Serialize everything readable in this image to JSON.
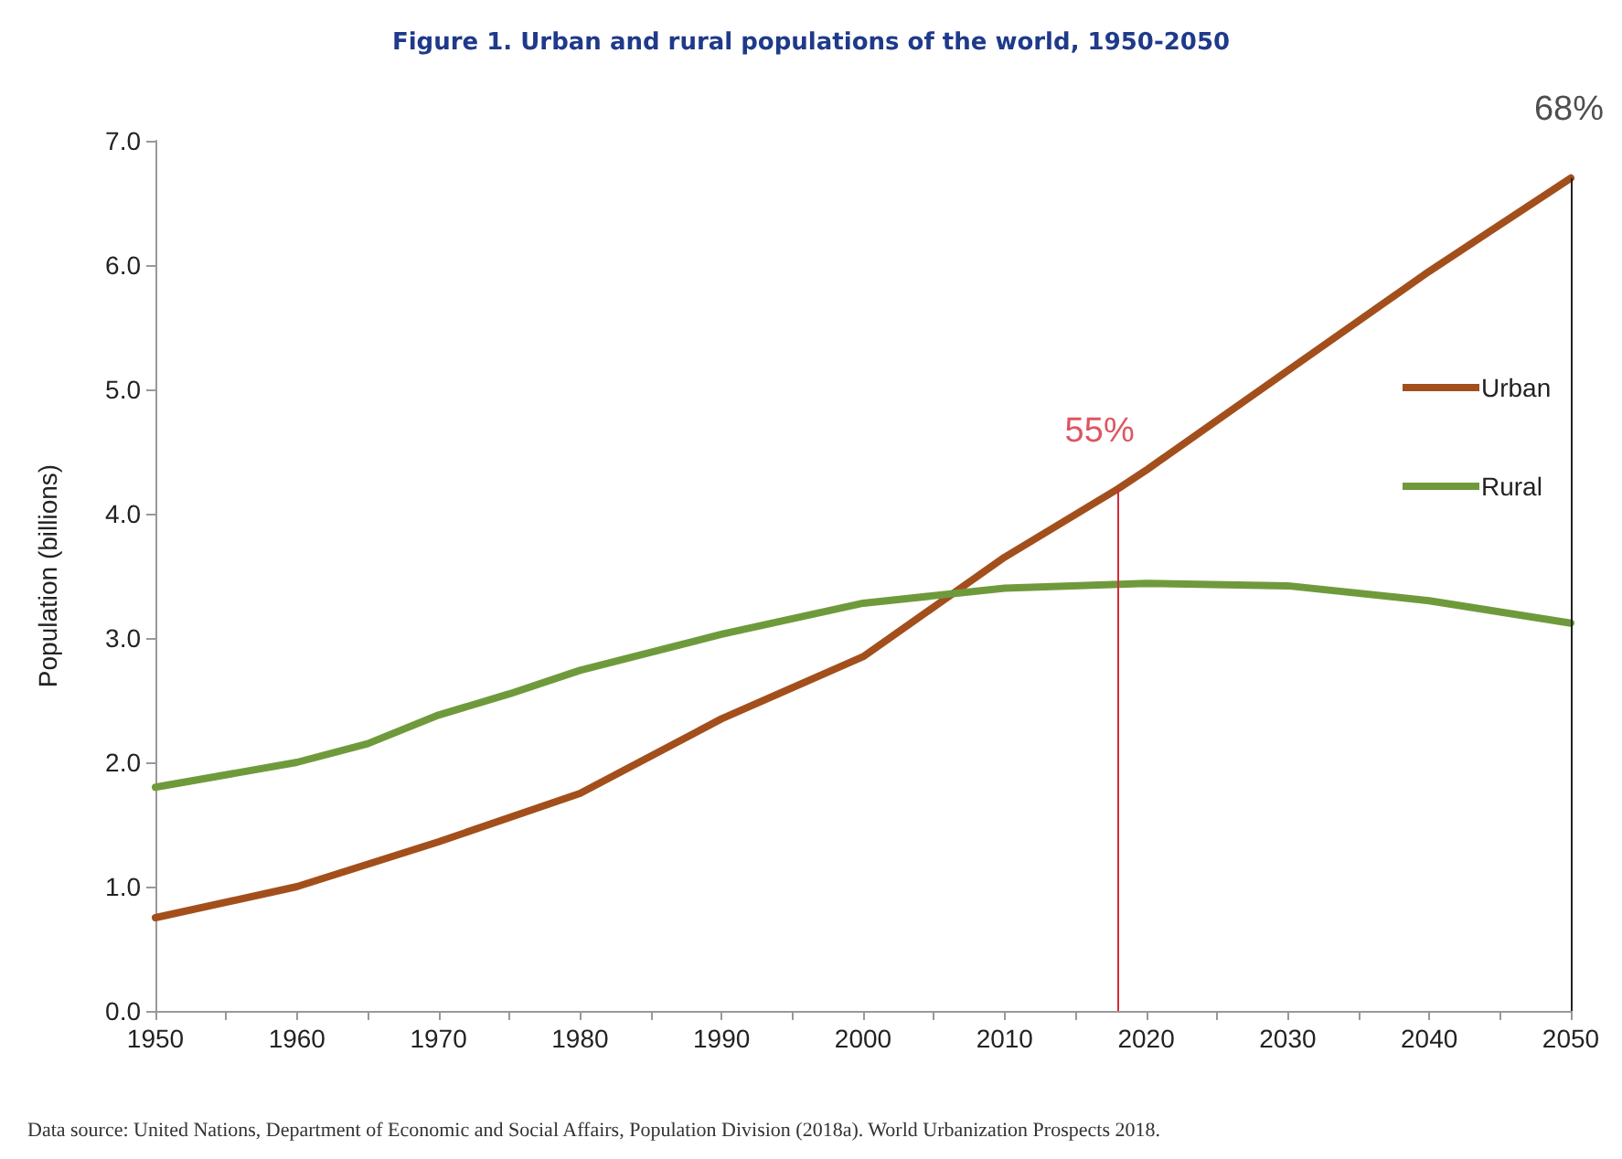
{
  "chart_data": {
    "type": "line",
    "title": "Figure 1. Urban and rural populations of the world, 1950-2050",
    "ylabel": "Population (billions)",
    "annotations": [
      "Data source: United Nations, Department of Economic and Social Affairs, Population Division (2018a). World Urbanization Prospects 2018.",
      {
        "text": "55%",
        "x": 2018,
        "y": 4.2
      },
      {
        "text": "68%",
        "x": 2050,
        "y": 6.7
      }
    ],
    "series": [
      {
        "name": "Urban",
        "color": "#a34f1c",
        "x": [
          1950,
          1960,
          1970,
          1980,
          1990,
          2000,
          2010,
          2018,
          2020,
          2030,
          2040,
          2050
        ],
        "values": [
          0.75,
          1.0,
          1.36,
          1.75,
          2.35,
          2.85,
          3.65,
          4.2,
          4.35,
          5.15,
          5.95,
          6.7
        ]
      },
      {
        "name": "Rural",
        "color": "#6f9a3c",
        "x": [
          1950,
          1960,
          1965,
          1970,
          1975,
          1980,
          1990,
          2000,
          2010,
          2020,
          2030,
          2040,
          2050
        ],
        "values": [
          1.8,
          2.0,
          2.15,
          2.38,
          2.55,
          2.74,
          3.03,
          3.28,
          3.4,
          3.44,
          3.42,
          3.3,
          3.12
        ]
      }
    ],
    "xlim": [
      1950,
      2050
    ],
    "xticks": [
      1950,
      {
        "value": 1955,
        "label": null
      },
      1960,
      {
        "value": 1965,
        "label": null
      },
      1970,
      {
        "value": 1975,
        "label": null
      },
      1980,
      {
        "value": 1985,
        "label": null
      },
      1990,
      {
        "value": 1995,
        "label": null
      },
      2000,
      {
        "value": 2005,
        "label": null
      },
      2010,
      {
        "value": 2015,
        "label": null
      },
      2020,
      {
        "value": 2025,
        "label": null
      },
      2030,
      {
        "value": 2035,
        "label": null
      },
      2040,
      {
        "value": 2045,
        "label": null
      },
      2050
    ],
    "ylim": [
      0,
      7
    ],
    "yticks": [
      {
        "value": 0,
        "label": "0.0"
      },
      {
        "value": 1,
        "label": "1.0"
      },
      {
        "value": 2,
        "label": "2.0"
      },
      {
        "value": 3,
        "label": "3.0"
      },
      {
        "value": 4,
        "label": "4.0"
      },
      {
        "value": 5,
        "label": "5.0"
      },
      {
        "value": 6,
        "label": "6.0"
      },
      {
        "value": 7,
        "label": "7.0"
      }
    ],
    "ref_lines": [
      {
        "axis": "x",
        "value": 2018,
        "color": "#d42a3a"
      },
      {
        "axis": "x",
        "value": 2050,
        "color": "#222222"
      }
    ],
    "grid": false,
    "legend": "right",
    "marker": "none",
    "line_style": "solid"
  }
}
